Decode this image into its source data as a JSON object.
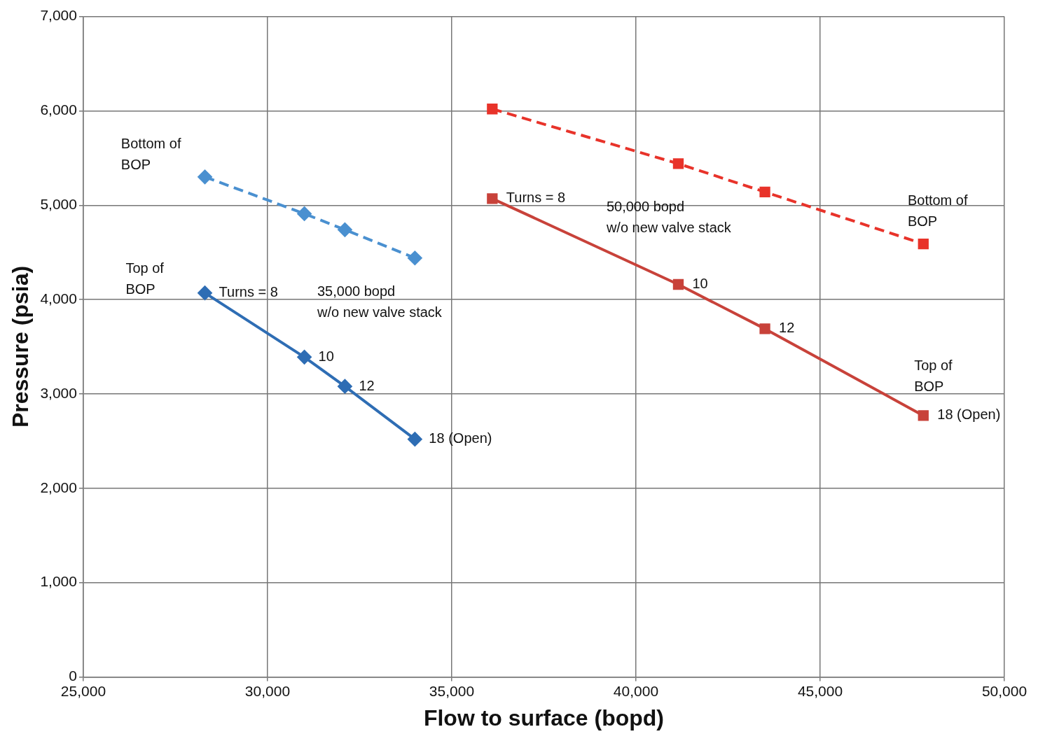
{
  "chart_data": {
    "type": "line",
    "xlabel": "Flow to surface (bopd)",
    "ylabel": "Pressure (psia)",
    "xlim": [
      25000,
      50000
    ],
    "xticks": [
      {
        "value": 25000,
        "label": "25,000"
      },
      {
        "value": 30000,
        "label": "30,000"
      },
      {
        "value": 35000,
        "label": "35,000"
      },
      {
        "value": 40000,
        "label": "40,000"
      },
      {
        "value": 45000,
        "label": "45,000"
      },
      {
        "value": 50000,
        "label": "50,000"
      }
    ],
    "ylim": [
      0,
      7000
    ],
    "yticks": [
      0,
      {
        "value": 1000,
        "label": "1,000"
      },
      {
        "value": 2000,
        "label": "2,000"
      },
      {
        "value": 3000,
        "label": "3,000"
      },
      {
        "value": 4000,
        "label": "4,000"
      },
      {
        "value": 5000,
        "label": "5,000"
      },
      {
        "value": 6000,
        "label": "6,000"
      },
      {
        "value": 7000,
        "label": "7,000"
      }
    ],
    "grid": true,
    "legend": false,
    "series": [
      {
        "color": "#4a90d0",
        "line_style": "dashed",
        "marker": "diamond",
        "x": [
          28300,
          31000,
          32100,
          34000
        ],
        "values": [
          5300,
          4910,
          4740,
          4440
        ]
      },
      {
        "color": "#2e6db4",
        "line_style": "solid",
        "marker": "diamond",
        "x": [
          28300,
          31000,
          32100,
          34000
        ],
        "values": [
          4070,
          3390,
          3080,
          2520
        ]
      },
      {
        "color": "#e8332a",
        "line_style": "dashed",
        "marker": "square",
        "x": [
          36100,
          41150,
          43500,
          47800
        ],
        "values": [
          6020,
          5440,
          5140,
          4590
        ]
      },
      {
        "color": "#c8423a",
        "line_style": "solid",
        "marker": "square",
        "x": [
          36100,
          41150,
          43500,
          47800
        ],
        "values": [
          5070,
          4160,
          3690,
          2770
        ]
      }
    ],
    "annotations": [
      "Bottom of\nBOP",
      "Top of\nBOP",
      {
        "text": "Turns = 8",
        "x": 28300,
        "y": 4070
      },
      {
        "text": "10",
        "x": 31000,
        "y": 3390
      },
      {
        "text": "12",
        "x": 32100,
        "y": 3080
      },
      {
        "text": "18 (Open)",
        "x": 34000,
        "y": 2520
      },
      "35,000 bopd\nw/o new valve stack",
      {
        "text": "Turns = 8",
        "x": 36100,
        "y": 5070
      },
      "50,000 bopd\nw/o new valve stack",
      {
        "text": "10",
        "x": 41150,
        "y": 4160
      },
      {
        "text": "12",
        "x": 43500,
        "y": 3690
      },
      "Bottom of\nBOP",
      "Top of\nBOP",
      {
        "text": "18 (Open)",
        "x": 47800,
        "y": 2770
      }
    ]
  }
}
